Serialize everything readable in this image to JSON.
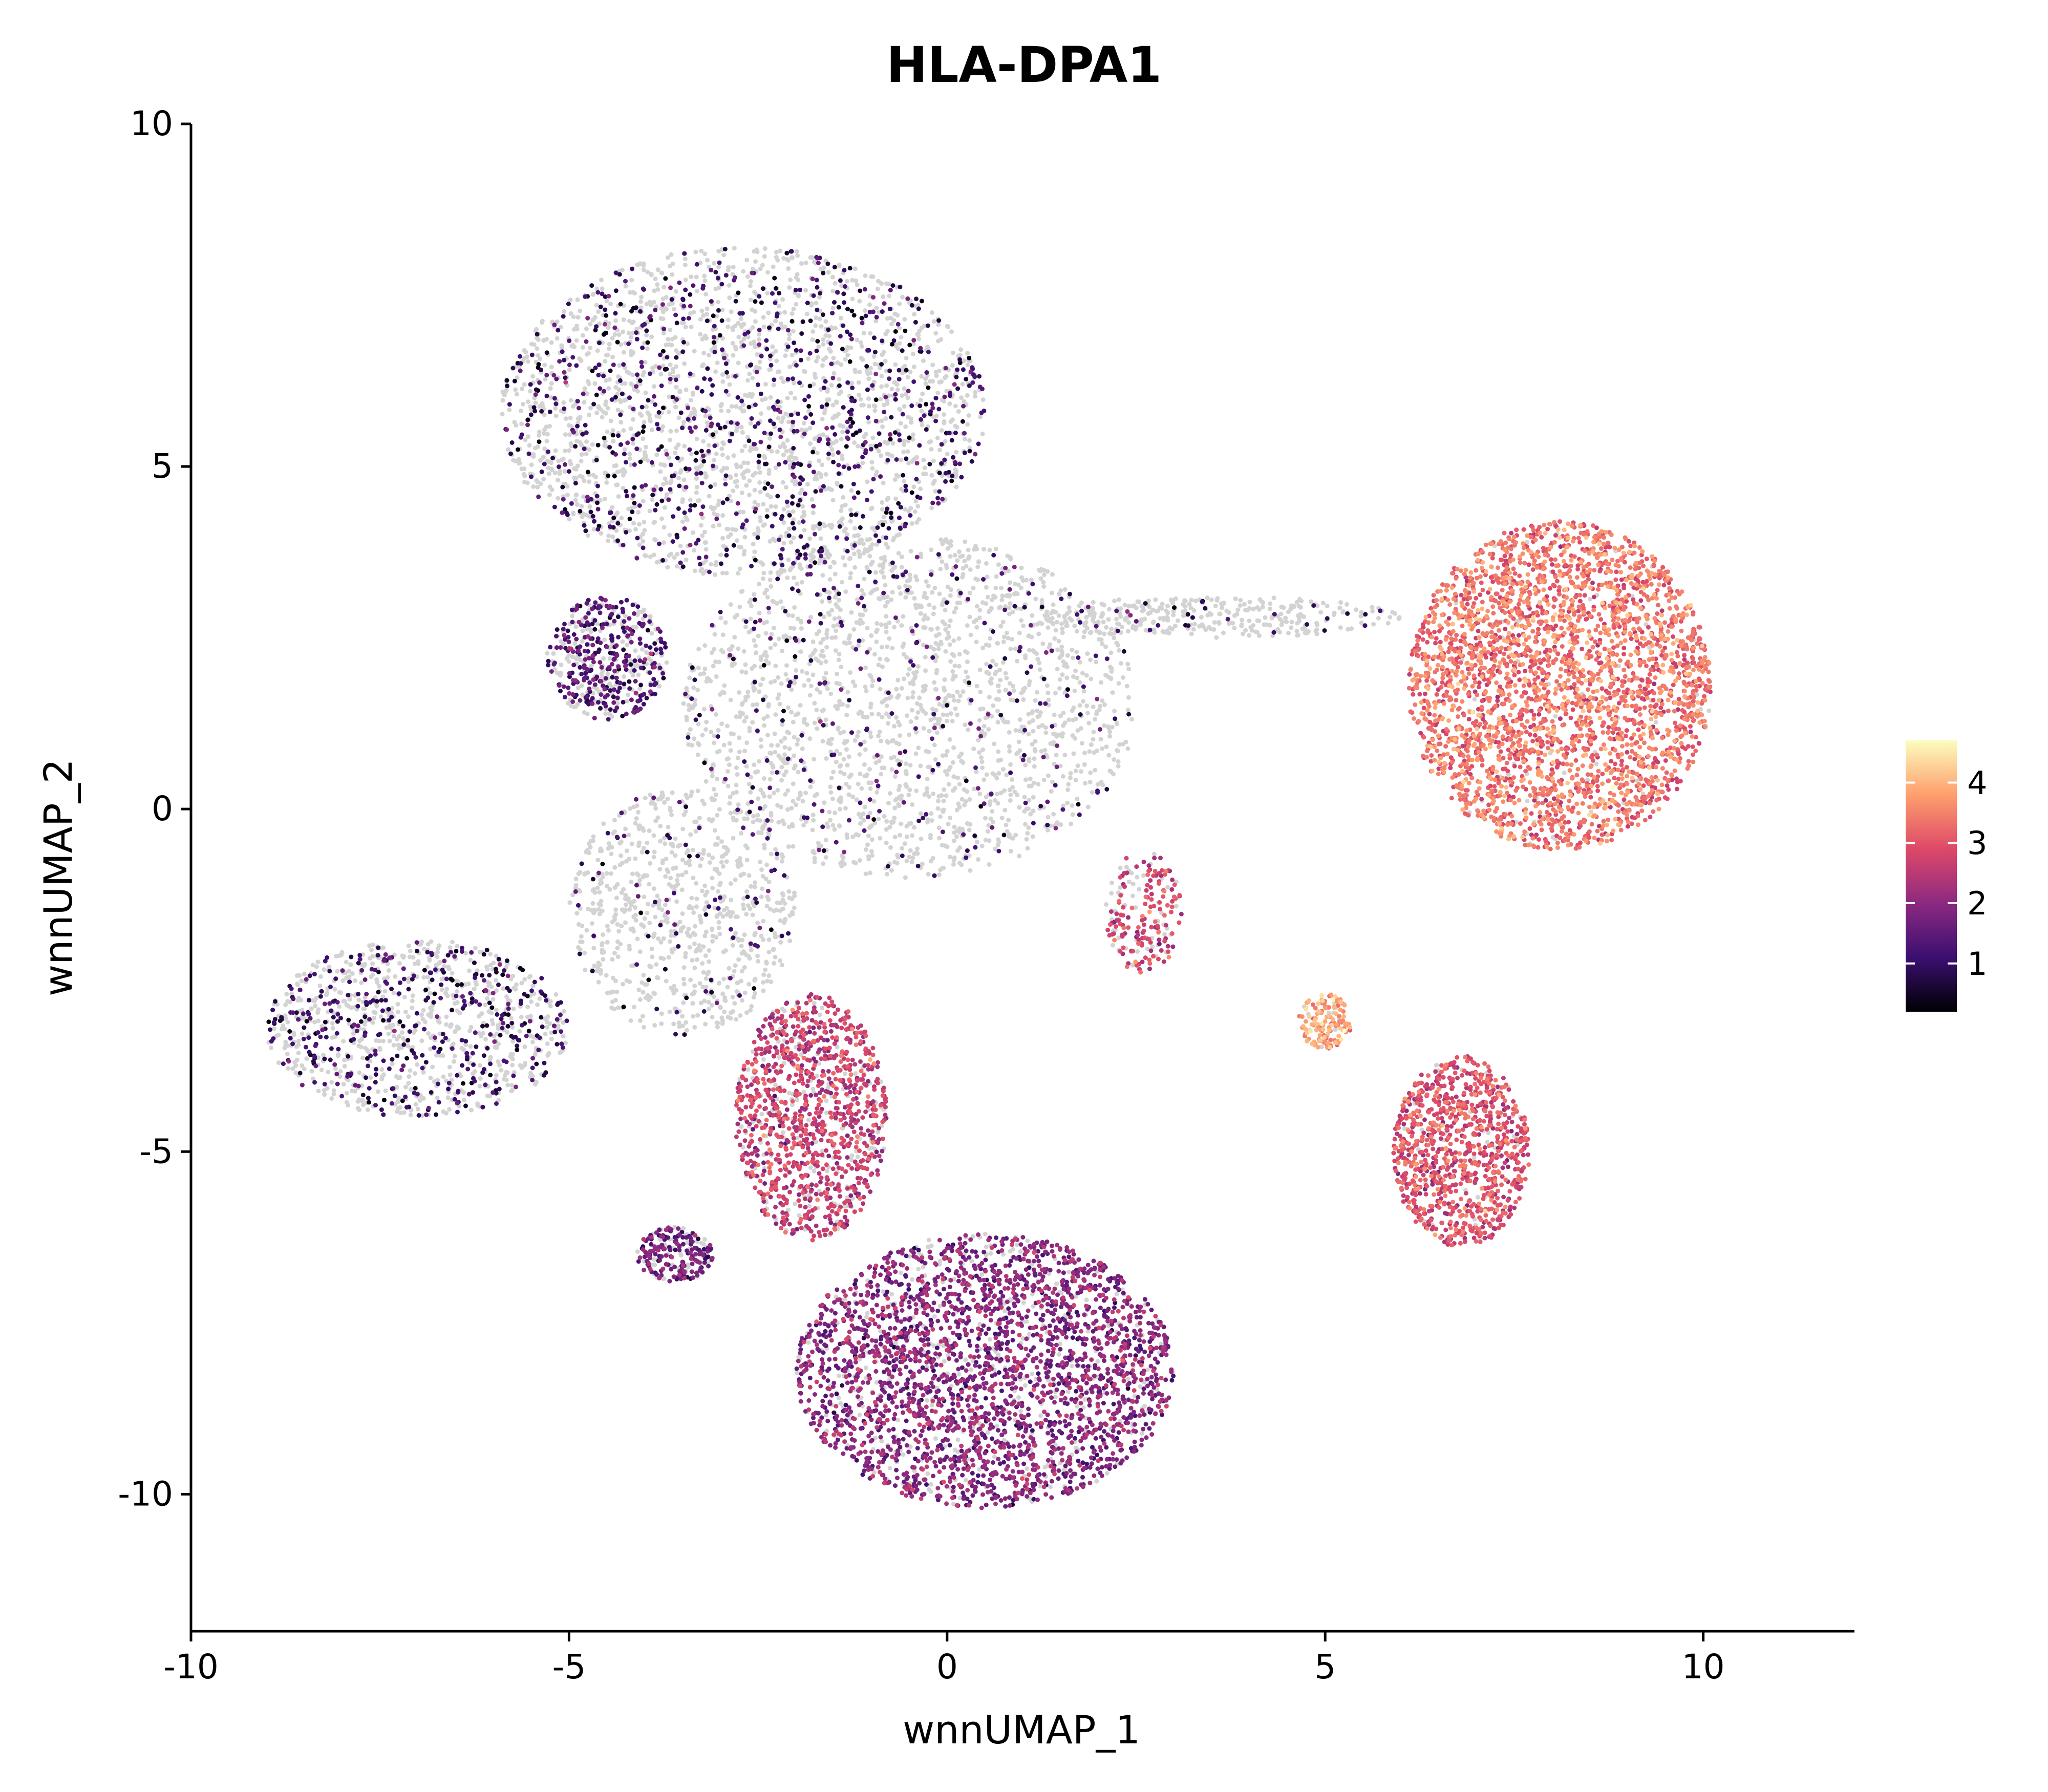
{
  "chart_data": {
    "type": "scatter",
    "title": "HLA-DPA1",
    "xlabel": "wnnUMAP_1",
    "ylabel": "wnnUMAP_2",
    "xlim": [
      -10,
      12
    ],
    "ylim": [
      -12,
      10
    ],
    "xticks": [
      -10,
      -5,
      0,
      5,
      10
    ],
    "yticks": [
      -10,
      -5,
      0,
      5,
      10
    ],
    "xtick_labels": [
      "-10",
      "-5",
      "0",
      "5",
      "10"
    ],
    "ytick_labels": [
      "-10",
      "-5",
      "0",
      "5",
      "10"
    ],
    "grid": false,
    "legend": {
      "placement": "right",
      "type": "colorbar",
      "colormap": "magma",
      "range": [
        0.2,
        4.7
      ],
      "ticks": [
        1,
        2,
        3,
        4
      ],
      "tick_labels": [
        "1",
        "2",
        "3",
        "4"
      ]
    },
    "zero_color": "#d3d3d3",
    "colorbar_colors": [
      "#000004",
      "#3b0f70",
      "#8c2981",
      "#de4968",
      "#fe9f6d",
      "#fcfdbf"
    ],
    "clusters": [
      {
        "cx": -2.7,
        "cy": 5.8,
        "rx": 3.2,
        "ry": 2.4,
        "n": 2600,
        "frac": 0.3,
        "mean": 1.0
      },
      {
        "cx": -4.5,
        "cy": 2.2,
        "rx": 0.8,
        "ry": 0.9,
        "n": 500,
        "frac": 0.6,
        "mean": 1.3
      },
      {
        "cx": -0.5,
        "cy": 1.5,
        "rx": 3.0,
        "ry": 2.5,
        "n": 2000,
        "frac": 0.12,
        "mean": 1.1
      },
      {
        "cx": -7.0,
        "cy": -3.2,
        "rx": 2.0,
        "ry": 1.3,
        "n": 1100,
        "frac": 0.35,
        "mean": 1.0
      },
      {
        "cx": -3.5,
        "cy": -1.5,
        "rx": 1.5,
        "ry": 1.8,
        "n": 800,
        "frac": 0.1,
        "mean": 1.0
      },
      {
        "cx": 0.5,
        "cy": -8.2,
        "rx": 2.5,
        "ry": 2.0,
        "n": 3000,
        "frac": 0.85,
        "mean": 1.9
      },
      {
        "cx": -1.8,
        "cy": -4.5,
        "rx": 1.0,
        "ry": 1.8,
        "n": 1200,
        "frac": 0.85,
        "mean": 2.6
      },
      {
        "cx": -3.6,
        "cy": -6.5,
        "rx": 0.5,
        "ry": 0.4,
        "n": 220,
        "frac": 0.7,
        "mean": 1.6
      },
      {
        "cx": 8.1,
        "cy": 1.8,
        "rx": 2.0,
        "ry": 2.4,
        "n": 3200,
        "frac": 0.97,
        "mean": 3.3
      },
      {
        "cx": 6.8,
        "cy": -5.0,
        "rx": 0.9,
        "ry": 1.4,
        "n": 1000,
        "frac": 0.95,
        "mean": 2.9
      },
      {
        "cx": 2.6,
        "cy": -1.5,
        "rx": 0.5,
        "ry": 0.9,
        "n": 200,
        "frac": 0.7,
        "mean": 2.8
      },
      {
        "cx": 5.0,
        "cy": -3.1,
        "rx": 0.35,
        "ry": 0.4,
        "n": 150,
        "frac": 0.9,
        "mean": 3.8
      },
      {
        "cx": 3.5,
        "cy": 2.8,
        "rx": 2.5,
        "ry": 0.3,
        "n": 350,
        "frac": 0.08,
        "mean": 1.0
      }
    ]
  }
}
